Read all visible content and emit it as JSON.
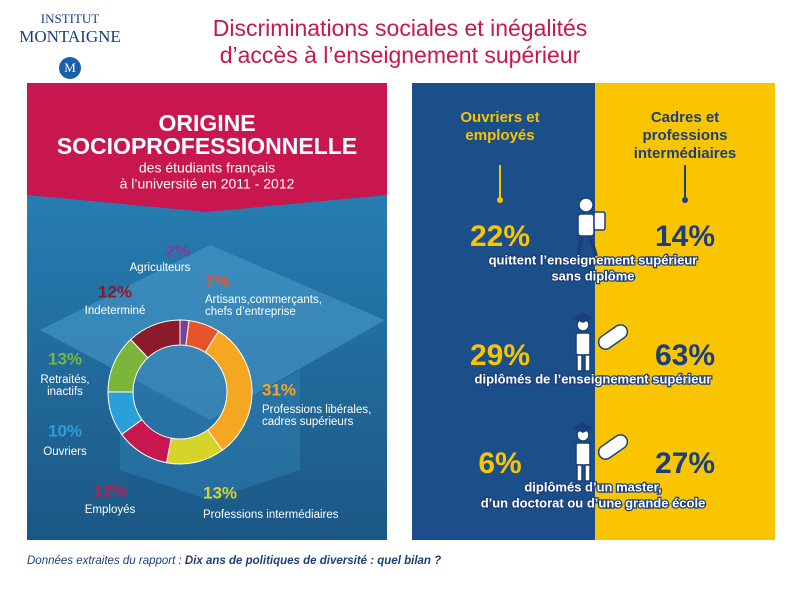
{
  "header": {
    "logo": [
      "INSTITUT",
      "MONTAIGNE"
    ],
    "title": [
      "Discriminations sociales et inégalités",
      "d’accès à l’enseignement supérieur"
    ]
  },
  "chart_data": {
    "type": "pie",
    "donut": true,
    "title": [
      "ORIGINE",
      "SOCIOPROFESSIONNELLE"
    ],
    "subtitle": [
      "des étudiants français",
      "à l’université en 2011 - 2012"
    ],
    "categories": [
      [
        "Agriculteurs"
      ],
      [
        "Artisans,commerçants,",
        "chefs d’entreprise"
      ],
      [
        "Professions libérales,",
        "cadres supérieurs"
      ],
      [
        "Professions intermédiaires"
      ],
      [
        "Employés"
      ],
      [
        "Ouvriers"
      ],
      [
        "Retraités,",
        "inactifs"
      ],
      [
        "Indeterminé"
      ]
    ],
    "values": [
      2,
      7,
      31,
      13,
      12,
      10,
      13,
      12
    ],
    "value_labels": [
      "2%",
      "7%",
      "31%",
      "13%",
      "12%",
      "10%",
      "13%",
      "12%"
    ],
    "colors": [
      "#7b3f98",
      "#e8542a",
      "#f5a623",
      "#d6d42a",
      "#c8174f",
      "#2b9fd9",
      "#7bb539",
      "#8b1a2b"
    ]
  },
  "comparison": {
    "columns": [
      [
        "Ouvriers et",
        "employés"
      ],
      [
        "Cadres et",
        "professions",
        "intermédiaires"
      ]
    ],
    "rows": [
      {
        "left": "22%",
        "right": "14%",
        "text": [
          "quittent l’enseignement supérieur",
          "sans diplôme"
        ]
      },
      {
        "left": "29%",
        "right": "63%",
        "text": [
          "diplômés de l’enseignement supérieur"
        ]
      },
      {
        "left": "6%",
        "right": "27%",
        "text": [
          "diplômés d’un master,",
          "d’un doctorat ou d’une grande école"
        ]
      }
    ]
  },
  "footer": {
    "prefix": "Données extraites du rapport : ",
    "report": "Dix ans de politiques de diversité : quel bilan ?"
  }
}
